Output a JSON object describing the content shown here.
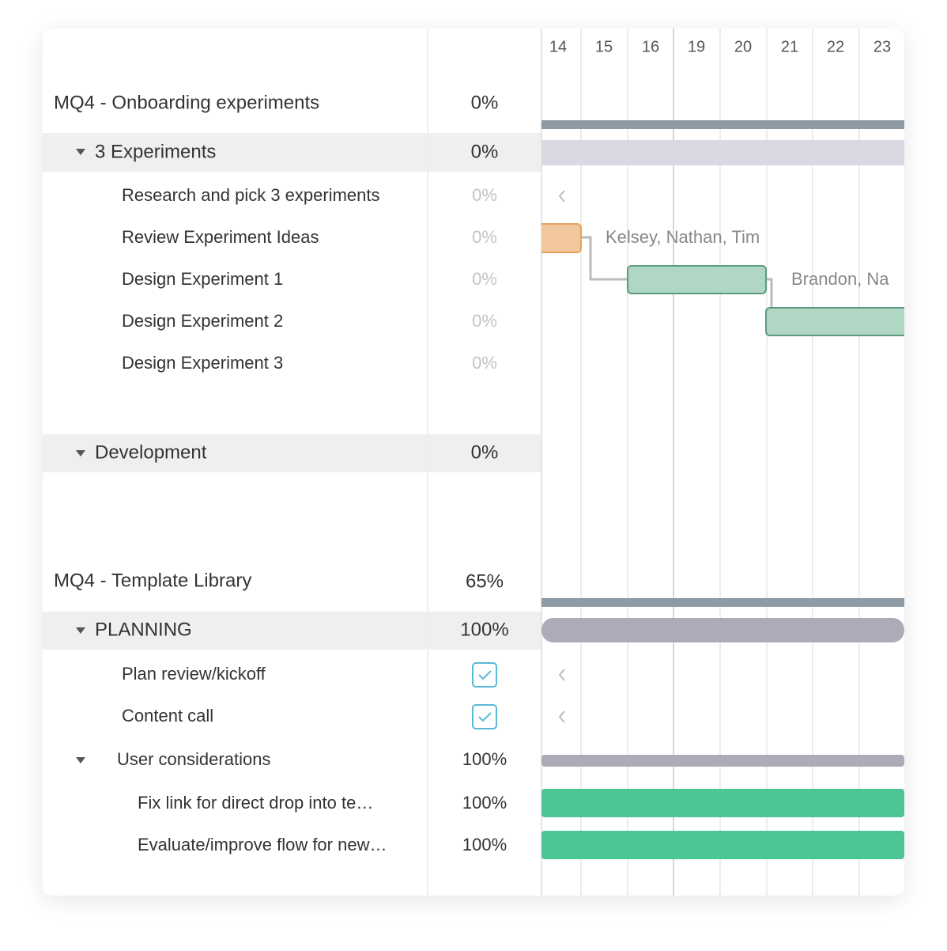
{
  "header": {
    "days": [
      "14",
      "15",
      "16",
      "19",
      "20",
      "21",
      "22",
      "23"
    ]
  },
  "rows": [
    {
      "label": "MQ4 - Onboarding experiments",
      "percent": "0%"
    },
    {
      "label": "3 Experiments",
      "percent": "0%"
    },
    {
      "label": "Research and pick 3 experiments",
      "percent": "0%"
    },
    {
      "label": "Review Experiment Ideas",
      "percent": "0%",
      "assignees": "Kelsey, Nathan, Tim"
    },
    {
      "label": "Design Experiment 1",
      "percent": "0%",
      "assignees": "Brandon, Na"
    },
    {
      "label": "Design Experiment 2",
      "percent": "0%"
    },
    {
      "label": "Design Experiment 3",
      "percent": "0%"
    },
    {
      "label": "Development",
      "percent": "0%"
    },
    {
      "label": "MQ4 - Template Library",
      "percent": "65%"
    },
    {
      "label": "PLANNING",
      "percent": "100%"
    },
    {
      "label": "Plan review/kickoff"
    },
    {
      "label": "Content call"
    },
    {
      "label": "User considerations",
      "percent": "100%"
    },
    {
      "label": "Fix link for direct drop into te…",
      "percent": "100%"
    },
    {
      "label": "Evaluate/improve flow for new…",
      "percent": "100%"
    }
  ]
}
